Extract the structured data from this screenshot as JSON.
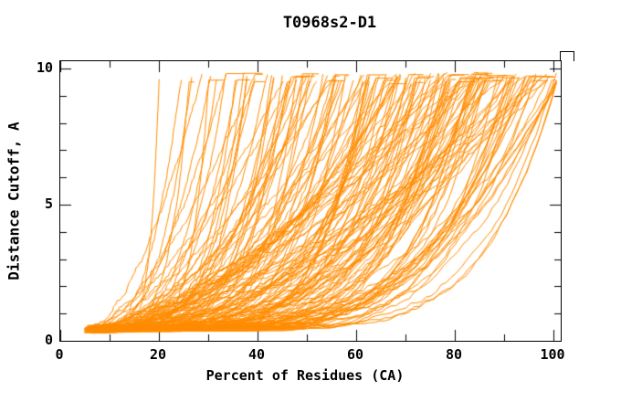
{
  "title": "T0968s2-D1",
  "chart_data": {
    "type": "line",
    "title": "T0968s2-D1",
    "xlabel": "Percent of Residues (CA)",
    "ylabel": "Distance Cutoff, A",
    "xlim": [
      0,
      100
    ],
    "ylim": [
      0,
      10
    ],
    "x_ticks": [
      0,
      20,
      40,
      60,
      80,
      100
    ],
    "x_tick_labels": [
      "0",
      "20",
      "40",
      "60",
      "80",
      "100"
    ],
    "x_minor_step": 10,
    "y_ticks": [
      0,
      5,
      10
    ],
    "y_tick_labels": [
      "0",
      "5",
      "10"
    ],
    "y_minor_step": 1,
    "grid": false,
    "legend": "none",
    "line_color": "#FF8C00",
    "axis_color": "#000000",
    "background": "#FFFFFF",
    "description": "Dense bundle of ~150-170 overlapping GDT-style model-accuracy curves for CASP target T0968s2-D1. Every curve is monotonically increasing, starting near (5% residues, 0.3 A) and fanning out: the steepest curves reach the 10 A cutoff by ~20% of residues, while the best models keep the distance cutoff below ~1-2 A out to ~80-90% of residues before rising sharply toward 100%. A thick low band of curves hugs the bottom (cutoff < 1.5 A) from 5% to ~85%, and curve tops terminate near 9.7-9.8 A.",
    "series_count": 170,
    "curve_envelope": {
      "x_start_pct": 5,
      "y_start_angstrom": 0.3,
      "y_max_angstrom": 9.8,
      "steepest_curve_reaches_top_at_x": 20,
      "shallowest_curve_reaches_top_at_x": 100
    },
    "generation": {
      "count": 170,
      "seed": 1968,
      "x_start_range": [
        4.8,
        7.3
      ],
      "y_start_range": [
        0.28,
        0.5
      ],
      "y_top_range": [
        9.5,
        9.85
      ],
      "x_top_min": 20,
      "x_top_max": 100.6,
      "x_top_bias_exponent": 0.6,
      "shape_exponent_base": 1.4,
      "shape_exponent_spread": 5.6,
      "jitter": 0.14,
      "points_per_curve": 95
    }
  }
}
